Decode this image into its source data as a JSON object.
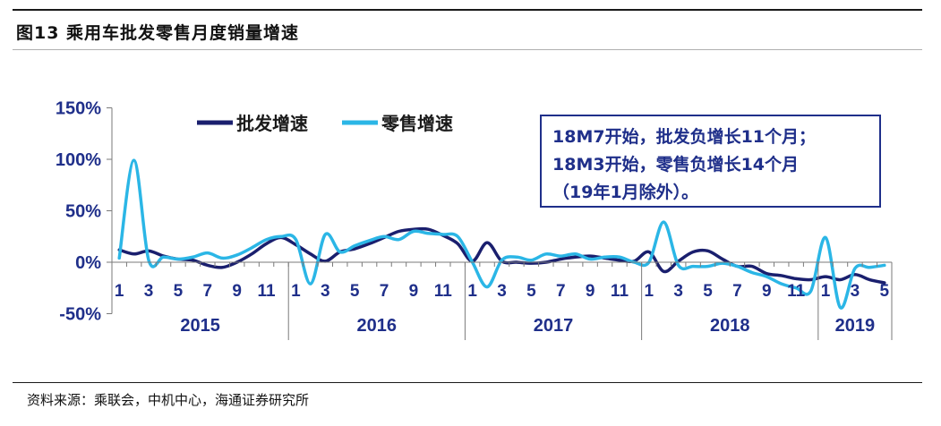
{
  "title": "图13 乘用车批发零售月度销量增速",
  "source": "资料来源：乘联会，中机中心，海通证券研究所",
  "annotation": {
    "line1": "18M7开始，批发负增长11个月；",
    "line2": "18M3开始，零售负增长14个月",
    "line3": "（19年1月除外）。"
  },
  "chart_data": {
    "type": "line",
    "title": "图13 乘用车批发零售月度销量增速",
    "ylabel": "",
    "xlabel": "",
    "ylim": [
      -50,
      150
    ],
    "yticks": [
      -50,
      0,
      50,
      100,
      150
    ],
    "ytick_labels": [
      "-50%",
      "0%",
      "50%",
      "100%",
      "150%"
    ],
    "month_tick_labels": [
      "1",
      "3",
      "5",
      "7",
      "9",
      "11",
      "1",
      "3",
      "5",
      "7",
      "9",
      "11",
      "1",
      "3",
      "5",
      "7",
      "9",
      "11",
      "1",
      "3",
      "5",
      "7",
      "9",
      "11",
      "1",
      "3",
      "5"
    ],
    "years": [
      "2015",
      "2016",
      "2017",
      "2018",
      "2019"
    ],
    "year_month_counts": [
      12,
      12,
      12,
      12,
      5
    ],
    "legend": {
      "placement": "top-left"
    },
    "colors": {
      "wholesale": "#1a1f6e",
      "retail": "#2bb6e6",
      "axis": "#1f2f8a",
      "tick_text": "#1f2f8a"
    },
    "series": [
      {
        "name": "批发增速",
        "values": [
          12,
          8,
          11,
          6,
          3,
          2,
          -3,
          -5,
          0,
          8,
          18,
          24,
          17,
          8,
          1,
          10,
          13,
          18,
          24,
          30,
          32,
          32,
          26,
          18,
          1,
          19,
          1,
          0,
          -1,
          0,
          3,
          5,
          6,
          4,
          2,
          1,
          10,
          -9,
          1,
          10,
          11,
          3,
          -4,
          -4,
          -11,
          -13,
          -16,
          -17,
          -14,
          -17,
          -12,
          -17,
          -20
        ]
      },
      {
        "name": "零售增速",
        "values": [
          4,
          99,
          2,
          5,
          3,
          5,
          9,
          4,
          7,
          14,
          22,
          25,
          22,
          -21,
          27,
          10,
          16,
          21,
          25,
          22,
          30,
          28,
          27,
          25,
          0,
          -24,
          2,
          5,
          2,
          8,
          6,
          8,
          3,
          5,
          5,
          0,
          0,
          39,
          -3,
          -4,
          -4,
          -1,
          -4,
          -10,
          -14,
          -21,
          -25,
          -28,
          24,
          -44,
          -6,
          -5,
          -3
        ]
      }
    ]
  }
}
